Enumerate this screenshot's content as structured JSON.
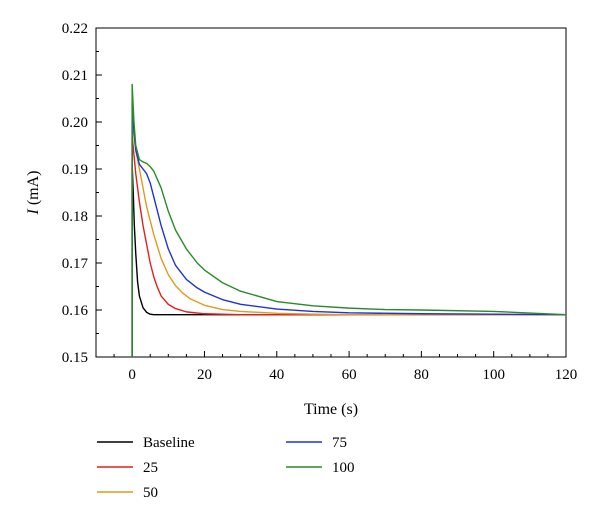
{
  "chart_data": {
    "type": "line",
    "title": "",
    "xlabel": "Time (s)",
    "ylabel": {
      "symbol": "I",
      "unit": " (mA)"
    },
    "xlim": [
      -10,
      120
    ],
    "ylim": [
      0.15,
      0.22
    ],
    "xticks": [
      0,
      20,
      40,
      60,
      80,
      100,
      120
    ],
    "xtick_labels": [
      "0",
      "20",
      "40",
      "60",
      "80",
      "100",
      "120"
    ],
    "yticks": [
      0.15,
      0.16,
      0.17,
      0.18,
      0.19,
      0.2,
      0.21,
      0.22
    ],
    "ytick_labels": [
      "0.15",
      "0.16",
      "0.17",
      "0.18",
      "0.19",
      "0.20",
      "0.21",
      "0.22"
    ],
    "grid": false,
    "legend_position": "bottom-left",
    "series": [
      {
        "name": "Baseline",
        "color": "#000000",
        "x": [
          0,
          0,
          0.3,
          0.6,
          1,
          1.5,
          2,
          3,
          4,
          5,
          6,
          8,
          10,
          15,
          20,
          40,
          60,
          80,
          100,
          120
        ],
        "y": [
          0.15,
          0.191,
          0.185,
          0.178,
          0.172,
          0.166,
          0.163,
          0.1605,
          0.1595,
          0.1591,
          0.159,
          0.159,
          0.159,
          0.159,
          0.159,
          0.159,
          0.159,
          0.159,
          0.159,
          0.159
        ]
      },
      {
        "name": "25",
        "color": "#e0201f",
        "x": [
          0,
          0,
          0.5,
          1,
          2,
          3,
          4,
          5,
          6,
          7,
          8,
          10,
          12,
          15,
          20,
          30,
          40,
          60,
          80,
          100,
          120
        ],
        "y": [
          0.15,
          0.197,
          0.193,
          0.189,
          0.183,
          0.178,
          0.174,
          0.17,
          0.167,
          0.1648,
          0.163,
          0.1612,
          0.1603,
          0.1596,
          0.1592,
          0.159,
          0.159,
          0.159,
          0.159,
          0.159,
          0.159
        ]
      },
      {
        "name": "50",
        "color": "#e09a1c",
        "x": [
          0,
          0,
          0.5,
          1,
          2,
          3,
          4,
          6,
          8,
          10,
          12,
          14,
          16,
          20,
          25,
          30,
          40,
          50,
          60,
          80,
          100,
          120
        ],
        "y": [
          0.15,
          0.2,
          0.197,
          0.194,
          0.19,
          0.186,
          0.182,
          0.176,
          0.171,
          0.1675,
          0.1652,
          0.1636,
          0.1624,
          0.161,
          0.1601,
          0.1597,
          0.1593,
          0.1591,
          0.159,
          0.159,
          0.159,
          0.159
        ]
      },
      {
        "name": "75",
        "color": "#1f33d6",
        "x": [
          0,
          0,
          0.5,
          1,
          2,
          3,
          4,
          5,
          6,
          8,
          10,
          12,
          15,
          18,
          20,
          25,
          30,
          40,
          50,
          60,
          80,
          100,
          120
        ],
        "y": [
          0.15,
          0.204,
          0.198,
          0.194,
          0.191,
          0.19,
          0.189,
          0.187,
          0.184,
          0.178,
          0.173,
          0.1695,
          0.1665,
          0.1647,
          0.1638,
          0.1622,
          0.1612,
          0.1602,
          0.1597,
          0.1594,
          0.1592,
          0.1591,
          0.159
        ]
      },
      {
        "name": "100",
        "color": "#2a8a2a",
        "x": [
          0,
          0,
          0.5,
          1,
          2,
          3,
          4,
          5,
          6,
          8,
          10,
          12,
          15,
          18,
          20,
          25,
          30,
          40,
          50,
          60,
          70,
          80,
          100,
          120
        ],
        "y": [
          0.15,
          0.208,
          0.2,
          0.195,
          0.192,
          0.1915,
          0.1912,
          0.1905,
          0.1895,
          0.186,
          0.181,
          0.177,
          0.173,
          0.17,
          0.1685,
          0.1658,
          0.164,
          0.1618,
          0.1609,
          0.1604,
          0.1601,
          0.16,
          0.1597,
          0.159
        ]
      }
    ]
  }
}
